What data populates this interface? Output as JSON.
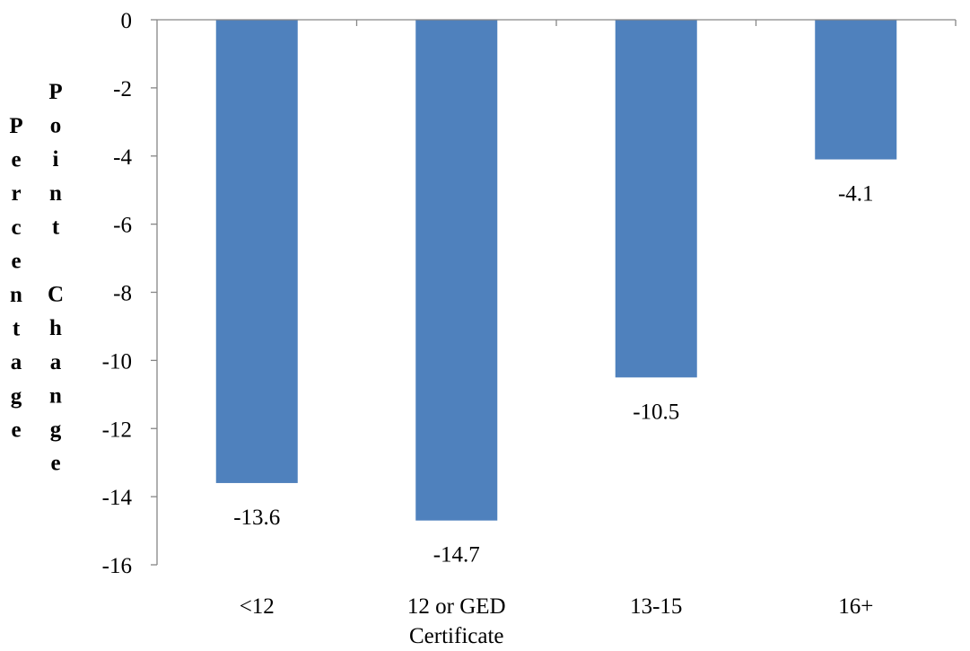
{
  "chart_data": {
    "type": "bar",
    "categories": [
      "<12",
      "12 or GED Certificate",
      "13-15",
      "16+"
    ],
    "category_lines": [
      [
        "<12"
      ],
      [
        "12 or GED",
        "Certificate"
      ],
      [
        "13-15"
      ],
      [
        "16+"
      ]
    ],
    "values": [
      -13.6,
      -14.7,
      -10.5,
      -4.1
    ],
    "data_labels": [
      "-13.6",
      "-14.7",
      "-10.5",
      "-4.1"
    ],
    "ylabel": "Percentage Point Change",
    "ylabel_columns": [
      "Percentage",
      "Point Change"
    ],
    "ylim": [
      -16,
      0
    ],
    "yticks": [
      0,
      -2,
      -4,
      -6,
      -8,
      -10,
      -12,
      -14,
      -16
    ],
    "grid": false,
    "legend": "none",
    "bar_color": "#4f81bd",
    "axis_color": "#868686"
  }
}
